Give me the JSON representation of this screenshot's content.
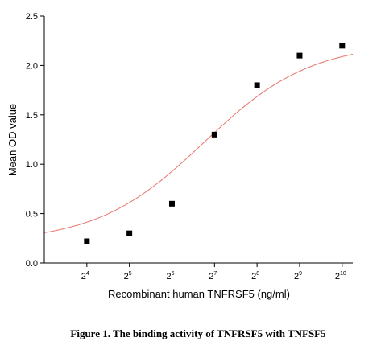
{
  "caption": "Figure 1. The binding activity of TNFRSF5 with TNFSF5",
  "chart_data": {
    "type": "scatter",
    "xlabel": "Recombinant human TNFRSF5 (ng/ml)",
    "ylabel": "Mean OD value",
    "x_scale": "log2",
    "xlim": [
      3,
      10.25
    ],
    "ylim": [
      0,
      2.5
    ],
    "x_ticks": [
      {
        "base": "2",
        "exp": "4",
        "value": 16
      },
      {
        "base": "2",
        "exp": "5",
        "value": 32
      },
      {
        "base": "2",
        "exp": "6",
        "value": 64
      },
      {
        "base": "2",
        "exp": "7",
        "value": 128
      },
      {
        "base": "2",
        "exp": "8",
        "value": 256
      },
      {
        "base": "2",
        "exp": "9",
        "value": 512
      },
      {
        "base": "2",
        "exp": "10",
        "value": 1024
      }
    ],
    "y_ticks": [
      "0.0",
      "0.5",
      "1.0",
      "1.5",
      "2.0",
      "2.5"
    ],
    "y_tick_values": [
      0,
      0.5,
      1.0,
      1.5,
      2.0,
      2.5
    ],
    "series": [
      {
        "x": [
          16,
          32,
          64,
          128,
          256,
          512,
          1024
        ],
        "y": [
          0.22,
          0.3,
          0.6,
          1.3,
          1.8,
          2.1,
          2.2
        ],
        "marker": "square",
        "color": "#000000"
      }
    ],
    "fit": {
      "type": "4PL",
      "bottom": 0.21,
      "top": 2.23,
      "ec50_log2": 6.75,
      "hill_log2": 1.15,
      "color": "#e8756a"
    },
    "grid": false,
    "legend": "none"
  }
}
